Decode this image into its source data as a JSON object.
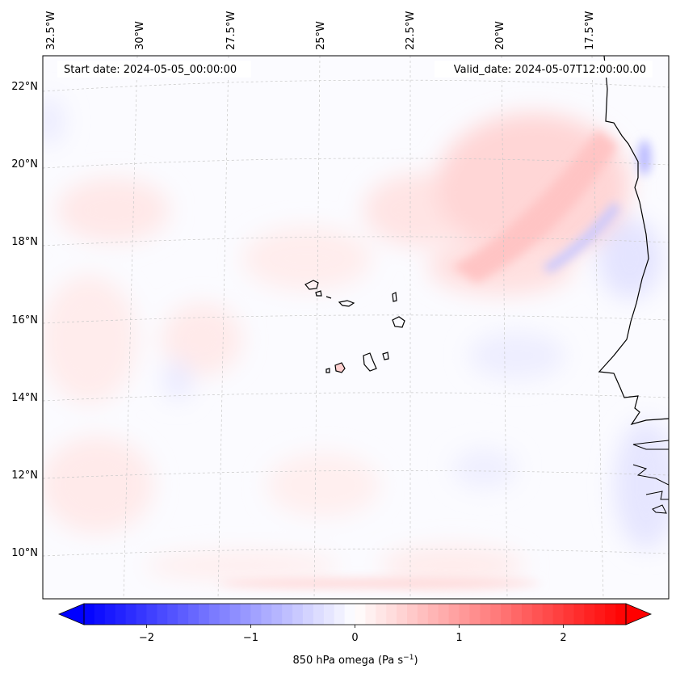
{
  "map": {
    "lon_labels": [
      "32.5°W",
      "30°W",
      "27.5°W",
      "25°W",
      "22.5°W",
      "20°W",
      "17.5°W"
    ],
    "lat_labels": [
      "22°N",
      "20°N",
      "18°N",
      "16°N",
      "14°N",
      "12°N",
      "10°N"
    ],
    "start_date": "Start date: 2024-05-05_00:00:00",
    "valid_date": "Valid_date: 2024-05-07T12:00:00.00"
  },
  "colorbar": {
    "ticks": [
      "−2",
      "−1",
      "0",
      "1",
      "2"
    ],
    "label": "850 hPa omega (Pa s",
    "label_sup": "−1",
    "label_close": ")",
    "range": [
      -2.6,
      2.6
    ],
    "colors": {
      "negative": "#0000ff",
      "zero": "#ffffff",
      "positive": "#ff0000"
    }
  }
}
